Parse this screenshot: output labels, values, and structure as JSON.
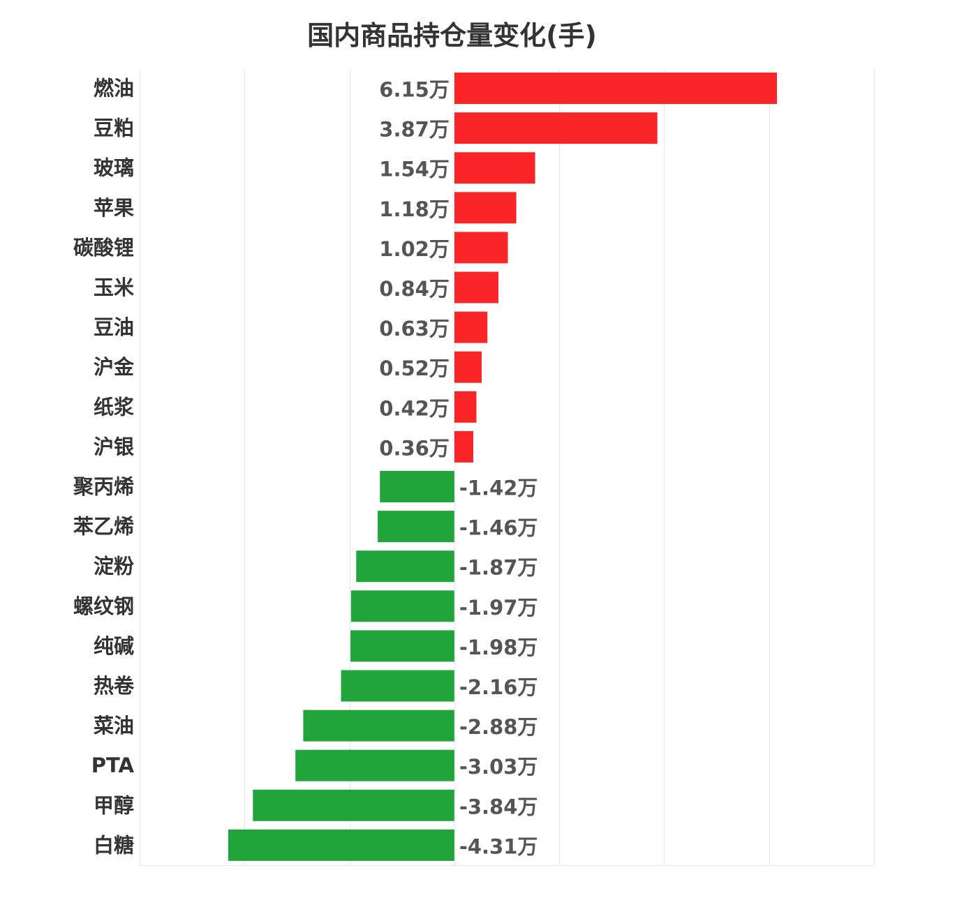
{
  "chart_data": {
    "type": "bar",
    "orientation": "horizontal",
    "title": "国内商品持仓量变化(手)",
    "unit_suffix": "万",
    "categories": [
      "燃油",
      "豆粕",
      "玻璃",
      "苹果",
      "碳酸锂",
      "玉米",
      "豆油",
      "沪金",
      "纸浆",
      "沪银",
      "聚丙烯",
      "苯乙烯",
      "淀粉",
      "螺纹钢",
      "纯碱",
      "热卷",
      "菜油",
      "PTA",
      "甲醇",
      "白糖"
    ],
    "values": [
      6.15,
      3.87,
      1.54,
      1.18,
      1.02,
      0.84,
      0.63,
      0.52,
      0.42,
      0.36,
      -1.42,
      -1.46,
      -1.87,
      -1.97,
      -1.98,
      -2.16,
      -2.88,
      -3.03,
      -3.84,
      -4.31
    ],
    "value_labels": [
      "6.15万",
      "3.87万",
      "1.54万",
      "1.18万",
      "1.02万",
      "0.84万",
      "0.63万",
      "0.52万",
      "0.42万",
      "0.36万",
      "-1.42万",
      "-1.46万",
      "-1.87万",
      "-1.97万",
      "-1.98万",
      "-2.16万",
      "-2.88万",
      "-3.03万",
      "-3.84万",
      "-4.31万"
    ],
    "xlim": [
      -6,
      8
    ],
    "grid": true,
    "positive_color": "#f92526",
    "negative_color": "#21a43a",
    "grid_color": "#e6e6e6"
  }
}
